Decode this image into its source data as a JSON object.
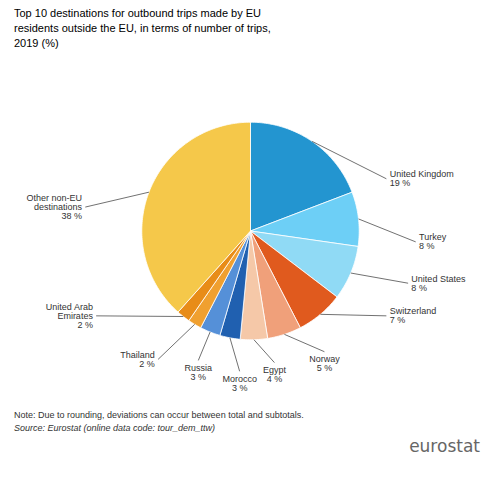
{
  "chart_data": {
    "type": "pie",
    "title": "Top 10 destinations for outbound trips made by EU\nresidents outside the EU, in terms of number of trips,\n2019 (%)",
    "categories": [
      "United Kingdom",
      "Turkey",
      "United States",
      "Switzerland",
      "Norway",
      "Egypt",
      "Morocco",
      "Russia",
      "Thailand",
      "United Arab\nEmirates",
      "Other non-EU\ndestinations"
    ],
    "values": [
      19,
      8,
      8,
      7,
      5,
      4,
      3,
      3,
      2,
      2,
      38
    ],
    "value_labels": [
      "19 %",
      "8 %",
      "8 %",
      "7 %",
      "5 %",
      "4 %",
      "3 %",
      "3 %",
      "2 %",
      "2 %",
      "38 %"
    ],
    "data_labels": true,
    "colors": [
      "#2395d0",
      "#6dcff6",
      "#90daf5",
      "#e05a1e",
      "#f0a07a",
      "#f5c8a8",
      "#2060b0",
      "#5590d8",
      "#f0a030",
      "#e88c18",
      "#f5c84a"
    ],
    "annotations": [
      "Note: Due to rounding, deviations can occur between total and subtotals.",
      "Source: Eurostat (online data code: tour_dem_ttw)",
      "eurostat"
    ]
  }
}
